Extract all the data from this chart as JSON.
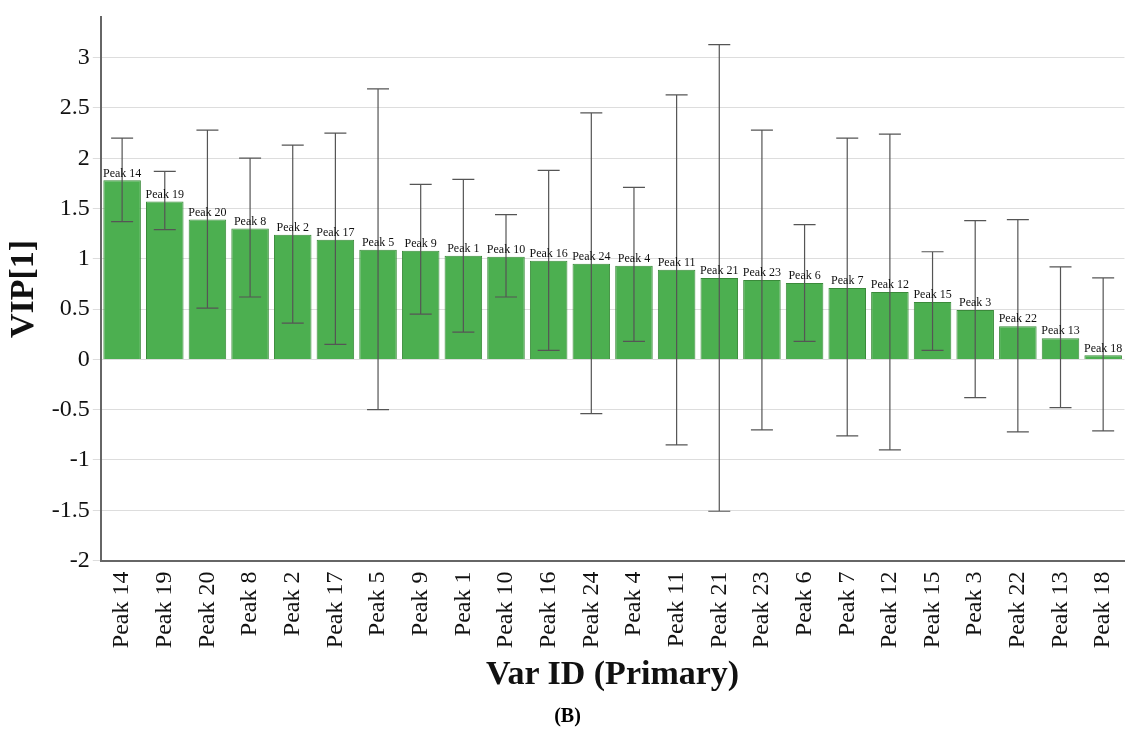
{
  "chart_data": {
    "type": "bar",
    "xlabel": "Var ID (Primary)",
    "ylabel": "VIP[1]",
    "categories": [
      "Peak 14",
      "Peak 19",
      "Peak 20",
      "Peak 8",
      "Peak 2",
      "Peak 17",
      "Peak 5",
      "Peak 9",
      "Peak 1",
      "Peak 10",
      "Peak 16",
      "Peak 24",
      "Peak 4",
      "Peak 11",
      "Peak 21",
      "Peak 23",
      "Peak 6",
      "Peak 7",
      "Peak 12",
      "Peak 15",
      "Peak 3",
      "Peak 22",
      "Peak 13",
      "Peak 18"
    ],
    "values": [
      1.78,
      1.57,
      1.39,
      1.3,
      1.24,
      1.19,
      1.09,
      1.08,
      1.03,
      1.02,
      0.98,
      0.95,
      0.93,
      0.89,
      0.81,
      0.79,
      0.76,
      0.71,
      0.67,
      0.57,
      0.49,
      0.33,
      0.21,
      0.04
    ],
    "errors": [
      [
        1.37,
        2.2
      ],
      [
        1.29,
        1.87
      ],
      [
        0.51,
        2.28
      ],
      [
        0.62,
        2.0
      ],
      [
        0.36,
        2.13
      ],
      [
        0.15,
        2.25
      ],
      [
        -0.5,
        2.69
      ],
      [
        0.45,
        1.74
      ],
      [
        0.27,
        1.79
      ],
      [
        0.62,
        1.44
      ],
      [
        0.09,
        1.88
      ],
      [
        -0.54,
        2.45
      ],
      [
        0.18,
        1.71
      ],
      [
        -0.85,
        2.63
      ],
      [
        -1.51,
        3.13
      ],
      [
        -0.7,
        2.28
      ],
      [
        0.18,
        1.34
      ],
      [
        -0.76,
        2.2
      ],
      [
        -0.9,
        2.24
      ],
      [
        0.09,
        1.07
      ],
      [
        -0.38,
        1.38
      ],
      [
        -0.72,
        1.39
      ],
      [
        -0.48,
        0.92
      ],
      [
        -0.71,
        0.81
      ]
    ],
    "color": "#4caf50",
    "ylim": [
      -2,
      3.4
    ],
    "yticks": [
      -2,
      -1.5,
      -1,
      -0.5,
      0,
      0.5,
      1,
      1.5,
      2,
      2.5,
      3
    ],
    "grid": "y",
    "annotations": [
      {
        "text": "Peak 14",
        "x": "Peak 14",
        "y": 1.78
      },
      {
        "text": "Peak 19",
        "x": "Peak 19",
        "y": 1.57
      },
      {
        "text": "Peak 20",
        "x": "Peak 20",
        "y": 1.39
      },
      {
        "text": "Peak 8",
        "x": "Peak 8",
        "y": 1.3
      },
      {
        "text": "Peak 2",
        "x": "Peak 2",
        "y": 1.24
      },
      {
        "text": "Peak 17",
        "x": "Peak 17",
        "y": 1.19
      },
      {
        "text": "Peak 5",
        "x": "Peak 5",
        "y": 1.09
      },
      {
        "text": "Peak 9",
        "x": "Peak 9",
        "y": 1.08
      },
      {
        "text": "Peak 1",
        "x": "Peak 1",
        "y": 1.03
      },
      {
        "text": "Peak 10",
        "x": "Peak 10",
        "y": 1.02
      },
      {
        "text": "Peak 16",
        "x": "Peak 16",
        "y": 0.98
      },
      {
        "text": "Peak 24",
        "x": "Peak 24",
        "y": 0.95
      },
      {
        "text": "Peak 4",
        "x": "Peak 4",
        "y": 0.93
      },
      {
        "text": "Peak 11",
        "x": "Peak 11",
        "y": 0.89
      },
      {
        "text": "Peak 21",
        "x": "Peak 21",
        "y": 0.81
      },
      {
        "text": "Peak 23",
        "x": "Peak 23",
        "y": 0.79
      },
      {
        "text": "Peak 6",
        "x": "Peak 6",
        "y": 0.76
      },
      {
        "text": "Peak 7",
        "x": "Peak 7",
        "y": 0.71
      },
      {
        "text": "Peak 12",
        "x": "Peak 12",
        "y": 0.67
      },
      {
        "text": "Peak 15",
        "x": "Peak 15",
        "y": 0.57
      },
      {
        "text": "Peak 3",
        "x": "Peak 3",
        "y": 0.49
      },
      {
        "text": "Peak 22",
        "x": "Peak 22",
        "y": 0.33
      },
      {
        "text": "Peak 13",
        "x": "Peak 13",
        "y": 0.21
      },
      {
        "text": "Peak 18",
        "x": "Peak 18",
        "y": 0.04
      },
      "(B)"
    ]
  }
}
